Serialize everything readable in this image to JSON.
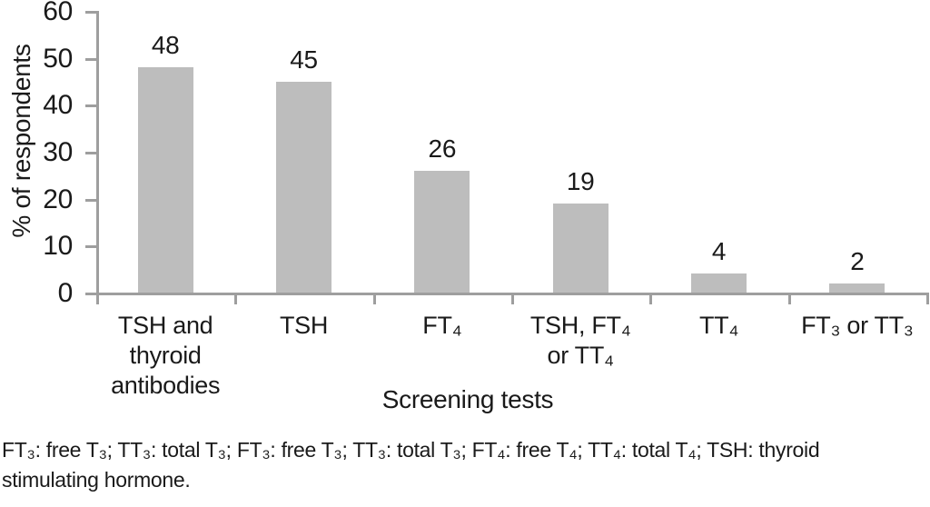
{
  "chart_data": {
    "type": "bar",
    "title": "",
    "categories": [
      "TSH and\nthyroid\nantibodies",
      "TSH",
      "FT₄",
      "TSH, FT₄\nor TT₄",
      "TT₄",
      "FT₃ or TT₃"
    ],
    "values": [
      48,
      45,
      26,
      19,
      4,
      2
    ],
    "value_labels": [
      "48",
      "45",
      "26",
      "19",
      "4",
      "2"
    ],
    "xlabel": "Screening tests",
    "ylabel": "% of respondents",
    "ylim": [
      0,
      60
    ],
    "yticks": [
      0,
      10,
      20,
      30,
      40,
      50,
      60
    ],
    "grid": false,
    "legend": "none",
    "bar_color": "#bdbdbd",
    "axis_color": "#9e9e9e",
    "text_color": "#1a1a1a"
  },
  "footnote": {
    "lines": [
      "FT₃: free T₃; TT₃: total T₃; FT₃: free T₃; TT₃: total T₃; FT₄: free T₄; TT₄: total T₄; TSH: thyroid",
      "stimulating hormone."
    ]
  }
}
